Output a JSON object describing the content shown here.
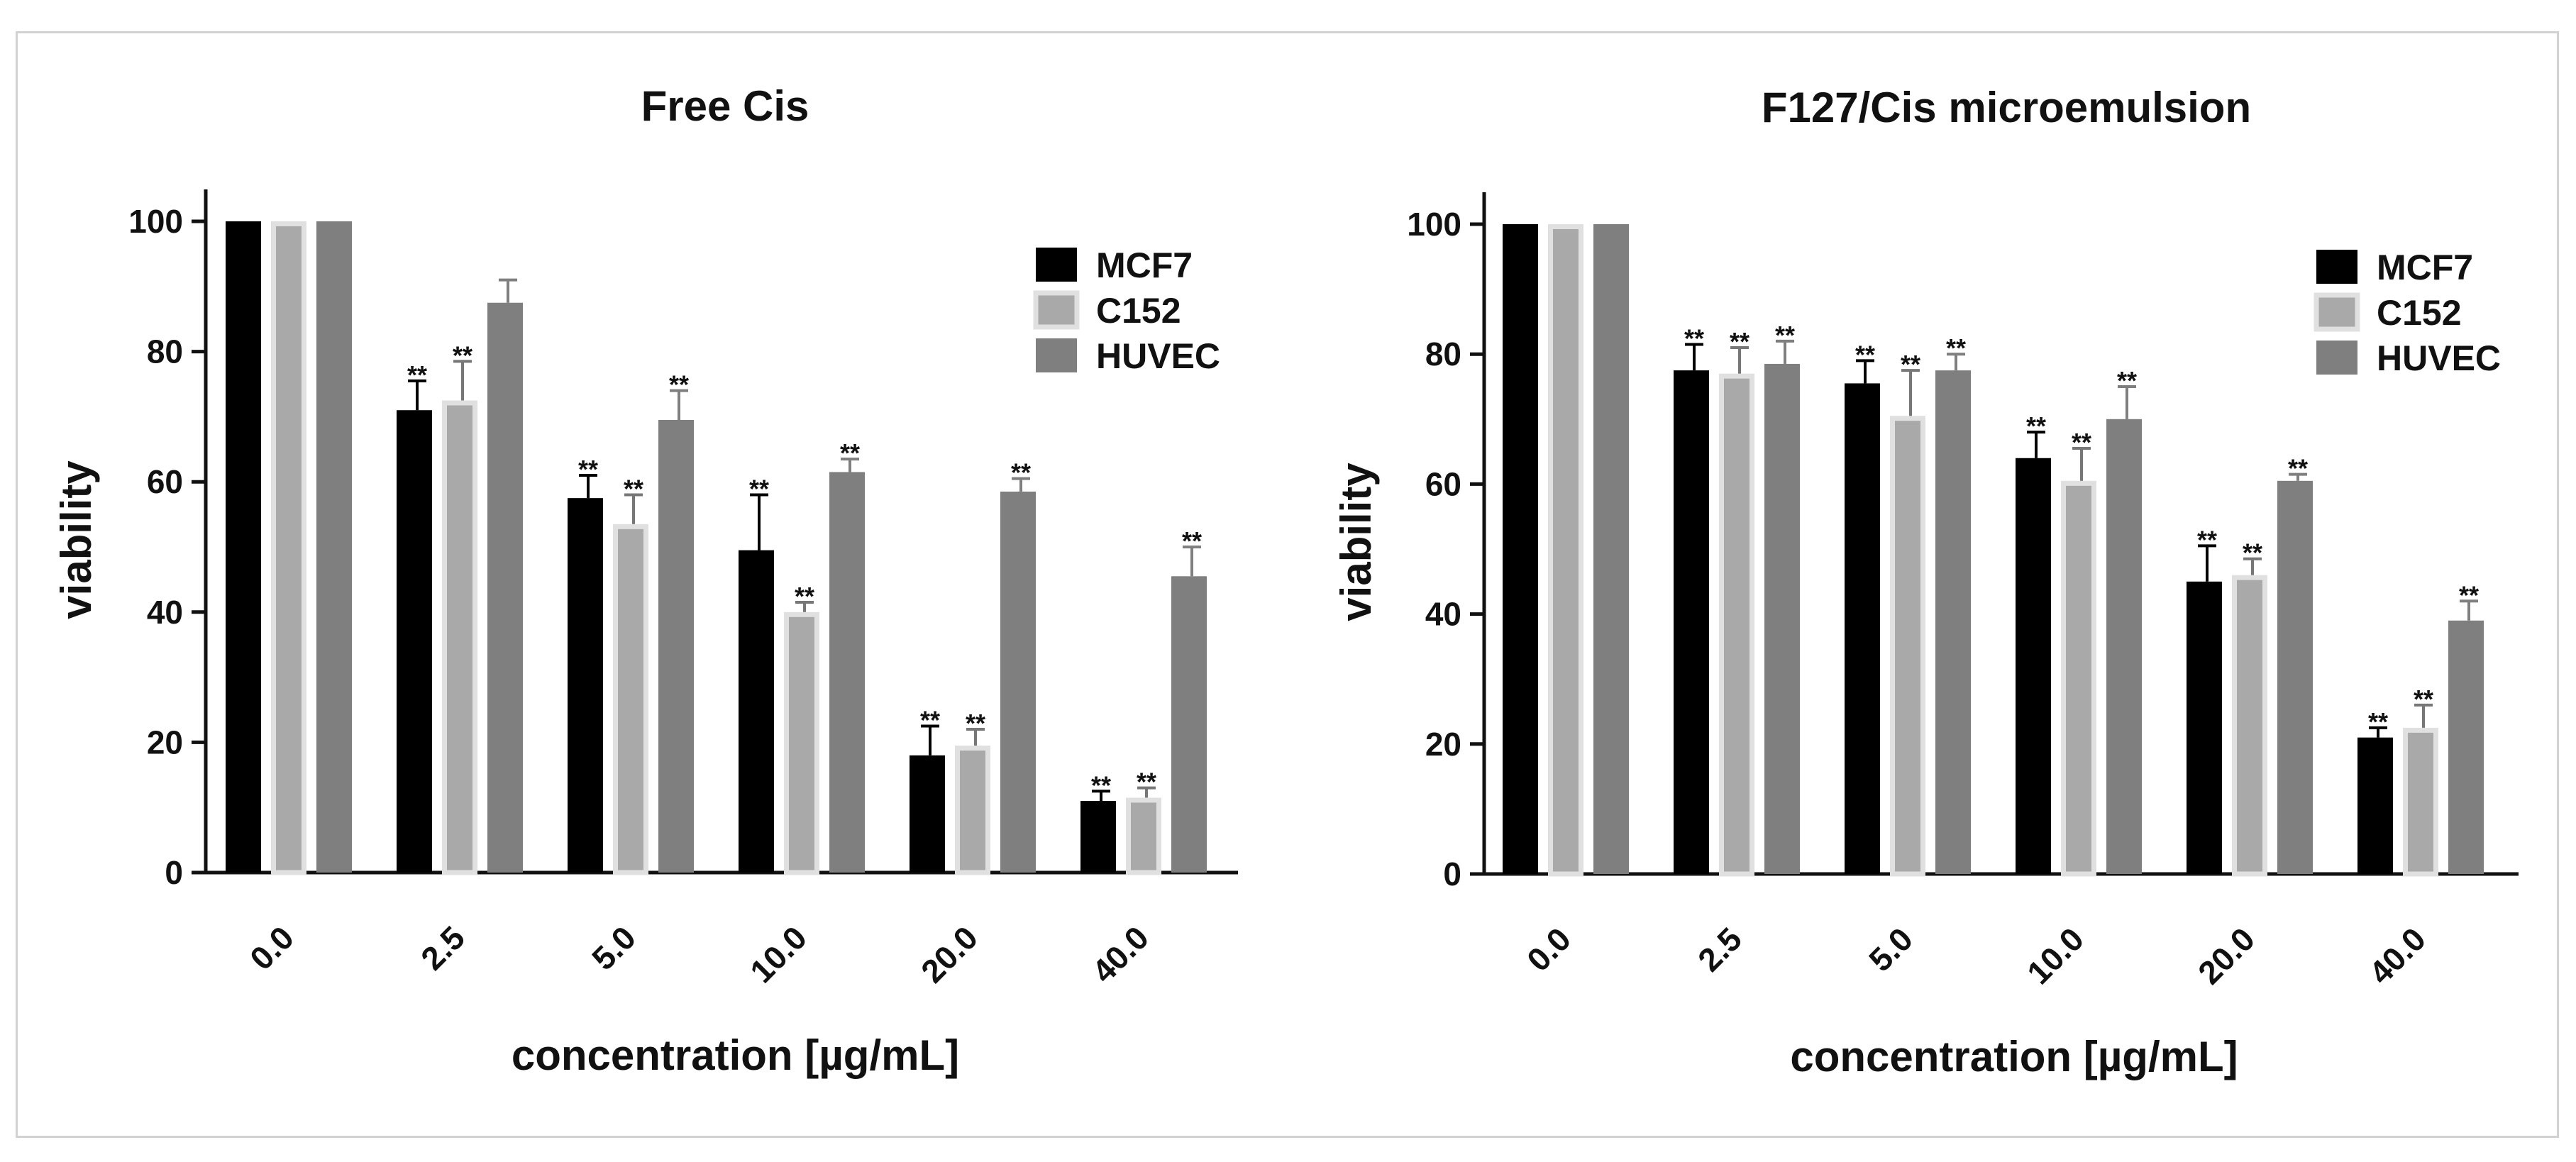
{
  "colors": {
    "MCF7": "#000000",
    "C152": "#a9a9a9",
    "C152_stroke": "#e0e0e0",
    "HUVEC": "#7f7f7f",
    "axis": "#111111"
  },
  "chart_data": [
    {
      "type": "bar",
      "title": "Free Cis",
      "xlabel": "concentration [µg/mL]",
      "ylabel": "viability",
      "ylim": [
        0,
        100
      ],
      "yticks": [
        "0",
        "20",
        "40",
        "60",
        "80",
        "100"
      ],
      "categories": [
        "0.0",
        "2.5",
        "5.0",
        "10.0",
        "20.0",
        "40.0"
      ],
      "legend_position": "top-right",
      "series": [
        {
          "name": "MCF7",
          "values": [
            100,
            71,
            57.5,
            49.5,
            18,
            11
          ],
          "errors": [
            0,
            4.5,
            3.5,
            8.5,
            4.5,
            1.5
          ],
          "significance": [
            "",
            "**",
            "**",
            "**",
            "**",
            "**"
          ]
        },
        {
          "name": "C152",
          "values": [
            100,
            72.5,
            53.5,
            40,
            19.5,
            11.5
          ],
          "errors": [
            0,
            6,
            4.5,
            1.5,
            2.5,
            1.5
          ],
          "significance": [
            "",
            "**",
            "**",
            "**",
            "**",
            "**"
          ]
        },
        {
          "name": "HUVEC",
          "values": [
            100,
            87.5,
            69.5,
            61.5,
            58.5,
            45.5
          ],
          "errors": [
            0,
            3.5,
            4.5,
            2,
            2,
            4.5
          ],
          "significance": [
            "",
            "",
            "**",
            "**",
            "**",
            "**"
          ]
        }
      ]
    },
    {
      "type": "bar",
      "title": "F127/Cis microemulsion",
      "xlabel": "concentration [µg/mL]",
      "ylabel": "viability",
      "ylim": [
        0,
        100
      ],
      "yticks": [
        "0",
        "20",
        "40",
        "60",
        "80",
        "100"
      ],
      "categories": [
        "0.0",
        "2.5",
        "5.0",
        "10.0",
        "20.0",
        "40.0"
      ],
      "legend_position": "top-right",
      "series": [
        {
          "name": "MCF7",
          "values": [
            100,
            77.5,
            75.5,
            64,
            45,
            21
          ],
          "errors": [
            0,
            4,
            3.5,
            4,
            5.5,
            1.5
          ],
          "significance": [
            "",
            "**",
            "**",
            "**",
            "**",
            "**"
          ]
        },
        {
          "name": "C152",
          "values": [
            100,
            77,
            70.5,
            60.5,
            46,
            22.5
          ],
          "errors": [
            0,
            4,
            7,
            5,
            2.5,
            3.5
          ],
          "significance": [
            "",
            "**",
            "**",
            "**",
            "**",
            "**"
          ]
        },
        {
          "name": "HUVEC",
          "values": [
            100,
            78.5,
            77.5,
            70,
            60.5,
            39
          ],
          "errors": [
            0,
            3.5,
            2.5,
            5,
            1,
            3
          ],
          "significance": [
            "",
            "**",
            "**",
            "**",
            "**",
            "**"
          ]
        }
      ]
    }
  ]
}
